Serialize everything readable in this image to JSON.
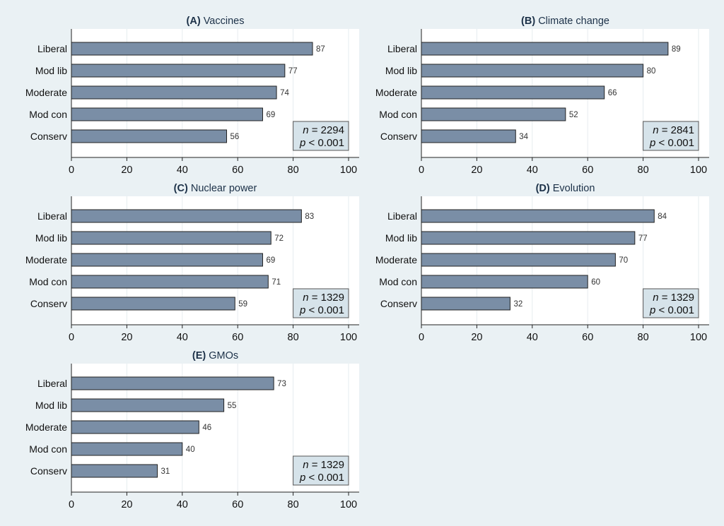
{
  "figure": {
    "background": "#eaf1f4",
    "plot_background": "#ffffff",
    "bar_color": "#7a8ea6",
    "bar_edge": "#222222",
    "annotation_box_color": "#d6e3ea"
  },
  "chart_data": [
    {
      "type": "bar",
      "orientation": "horizontal",
      "label": "(A)",
      "title": "Vaccines",
      "categories": [
        "Liberal",
        "Mod lib",
        "Moderate",
        "Mod con",
        "Conserv"
      ],
      "values": [
        87,
        77,
        74,
        69,
        56
      ],
      "data_labels": [
        "87",
        "77",
        "74",
        "69",
        "56"
      ],
      "xlim": [
        0,
        100
      ],
      "xticks": [
        0,
        20,
        40,
        60,
        80,
        100
      ],
      "xlabel": "",
      "ylabel": "",
      "grid": true,
      "annotation": {
        "n": "2294",
        "p": "< 0.001",
        "placement": "bottom-right"
      }
    },
    {
      "type": "bar",
      "orientation": "horizontal",
      "label": "(B)",
      "title": "Climate change",
      "categories": [
        "Liberal",
        "Mod lib",
        "Moderate",
        "Mod con",
        "Conserv"
      ],
      "values": [
        89,
        80,
        66,
        52,
        34
      ],
      "data_labels": [
        "89",
        "80",
        "66",
        "52",
        "34"
      ],
      "xlim": [
        0,
        100
      ],
      "xticks": [
        0,
        20,
        40,
        60,
        80,
        100
      ],
      "xlabel": "",
      "ylabel": "",
      "grid": true,
      "annotation": {
        "n": "2841",
        "p": "< 0.001",
        "placement": "bottom-right"
      }
    },
    {
      "type": "bar",
      "orientation": "horizontal",
      "label": "(C)",
      "title": "Nuclear power",
      "categories": [
        "Liberal",
        "Mod lib",
        "Moderate",
        "Mod con",
        "Conserv"
      ],
      "values": [
        83,
        72,
        69,
        71,
        59
      ],
      "data_labels": [
        "83",
        "72",
        "69",
        "71",
        "59"
      ],
      "xlim": [
        0,
        100
      ],
      "xticks": [
        0,
        20,
        40,
        60,
        80,
        100
      ],
      "xlabel": "",
      "ylabel": "",
      "grid": true,
      "annotation": {
        "n": "1329",
        "p": "< 0.001",
        "placement": "bottom-right"
      }
    },
    {
      "type": "bar",
      "orientation": "horizontal",
      "label": "(D)",
      "title": "Evolution",
      "categories": [
        "Liberal",
        "Mod lib",
        "Moderate",
        "Mod con",
        "Conserv"
      ],
      "values": [
        84,
        77,
        70,
        60,
        32
      ],
      "data_labels": [
        "84",
        "77",
        "70",
        "60",
        "32"
      ],
      "xlim": [
        0,
        100
      ],
      "xticks": [
        0,
        20,
        40,
        60,
        80,
        100
      ],
      "xlabel": "",
      "ylabel": "",
      "grid": true,
      "annotation": {
        "n": "1329",
        "p": "< 0.001",
        "placement": "bottom-right"
      }
    },
    {
      "type": "bar",
      "orientation": "horizontal",
      "label": "(E)",
      "title": "GMOs",
      "categories": [
        "Liberal",
        "Mod lib",
        "Moderate",
        "Mod con",
        "Conserv"
      ],
      "values": [
        73,
        55,
        46,
        40,
        31
      ],
      "data_labels": [
        "73",
        "55",
        "46",
        "40",
        "31"
      ],
      "xlim": [
        0,
        100
      ],
      "xticks": [
        0,
        20,
        40,
        60,
        80,
        100
      ],
      "xlabel": "",
      "ylabel": "",
      "grid": true,
      "annotation": {
        "n": "1329",
        "p": "< 0.001",
        "placement": "bottom-right"
      }
    }
  ]
}
